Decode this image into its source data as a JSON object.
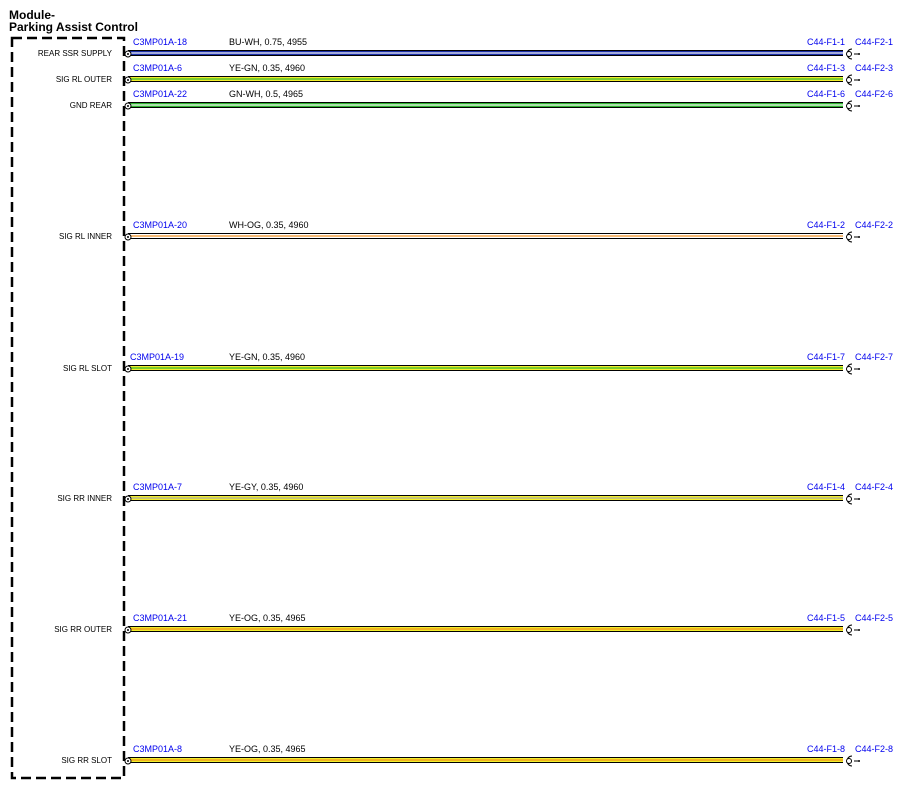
{
  "module": {
    "title_line1": "Module-",
    "title_line2": "Parking Assist Control"
  },
  "colors": {
    "BU": "#1a2ea8",
    "WH": "#ffffff",
    "YE": "#f2ee2a",
    "GN": "#2fb52f",
    "OG": "#f08c1a",
    "GY": "#a9a9a9",
    "link": "#0000ee"
  },
  "circuits": [
    {
      "pin_label": "REAR SSR SUPPLY",
      "conn_left": "C3MP01A-18",
      "wire_spec": "BU-WH,  0.75,  4955",
      "primary": "BU",
      "stripe": "WH",
      "conn_right1": "C44-F1-1",
      "conn_right2": "C44-F2-1"
    },
    {
      "pin_label": "SIG RL OUTER",
      "conn_left": "C3MP01A-6",
      "wire_spec": "YE-GN,  0.35,  4960",
      "primary": "YE",
      "stripe": "GN",
      "conn_right1": "C44-F1-3",
      "conn_right2": "C44-F2-3"
    },
    {
      "pin_label": "GND REAR",
      "conn_left": "C3MP01A-22",
      "wire_spec": "GN-WH,  0.5,  4965",
      "primary": "GN",
      "stripe": "WH",
      "conn_right1": "C44-F1-6",
      "conn_right2": "C44-F2-6"
    },
    {
      "pin_label": "SIG RL INNER",
      "conn_left": "C3MP01A-20",
      "wire_spec": "WH-OG,  0.35,  4960",
      "primary": "WH",
      "stripe": "OG",
      "conn_right1": "C44-F1-2",
      "conn_right2": "C44-F2-2"
    },
    {
      "pin_label": "SIG RL SLOT",
      "conn_left": "C3MP01A-19",
      "wire_spec": "YE-GN,  0.35,  4960",
      "primary": "YE",
      "stripe": "GN",
      "conn_right1": "C44-F1-7",
      "conn_right2": "C44-F2-7"
    },
    {
      "pin_label": "SIG RR INNER",
      "conn_left": "C3MP01A-7",
      "wire_spec": "YE-GY,  0.35,  4960",
      "primary": "YE",
      "stripe": "GY",
      "conn_right1": "C44-F1-4",
      "conn_right2": "C44-F2-4"
    },
    {
      "pin_label": "SIG RR OUTER",
      "conn_left": "C3MP01A-21",
      "wire_spec": "YE-OG,  0.35,  4965",
      "primary": "YE",
      "stripe": "OG",
      "conn_right1": "C44-F1-5",
      "conn_right2": "C44-F2-5"
    },
    {
      "pin_label": "SIG RR SLOT",
      "conn_left": "C3MP01A-8",
      "wire_spec": "YE-OG,  0.35,  4965",
      "primary": "YE",
      "stripe": "OG",
      "conn_right1": "C44-F1-8",
      "conn_right2": "C44-F2-8"
    }
  ]
}
